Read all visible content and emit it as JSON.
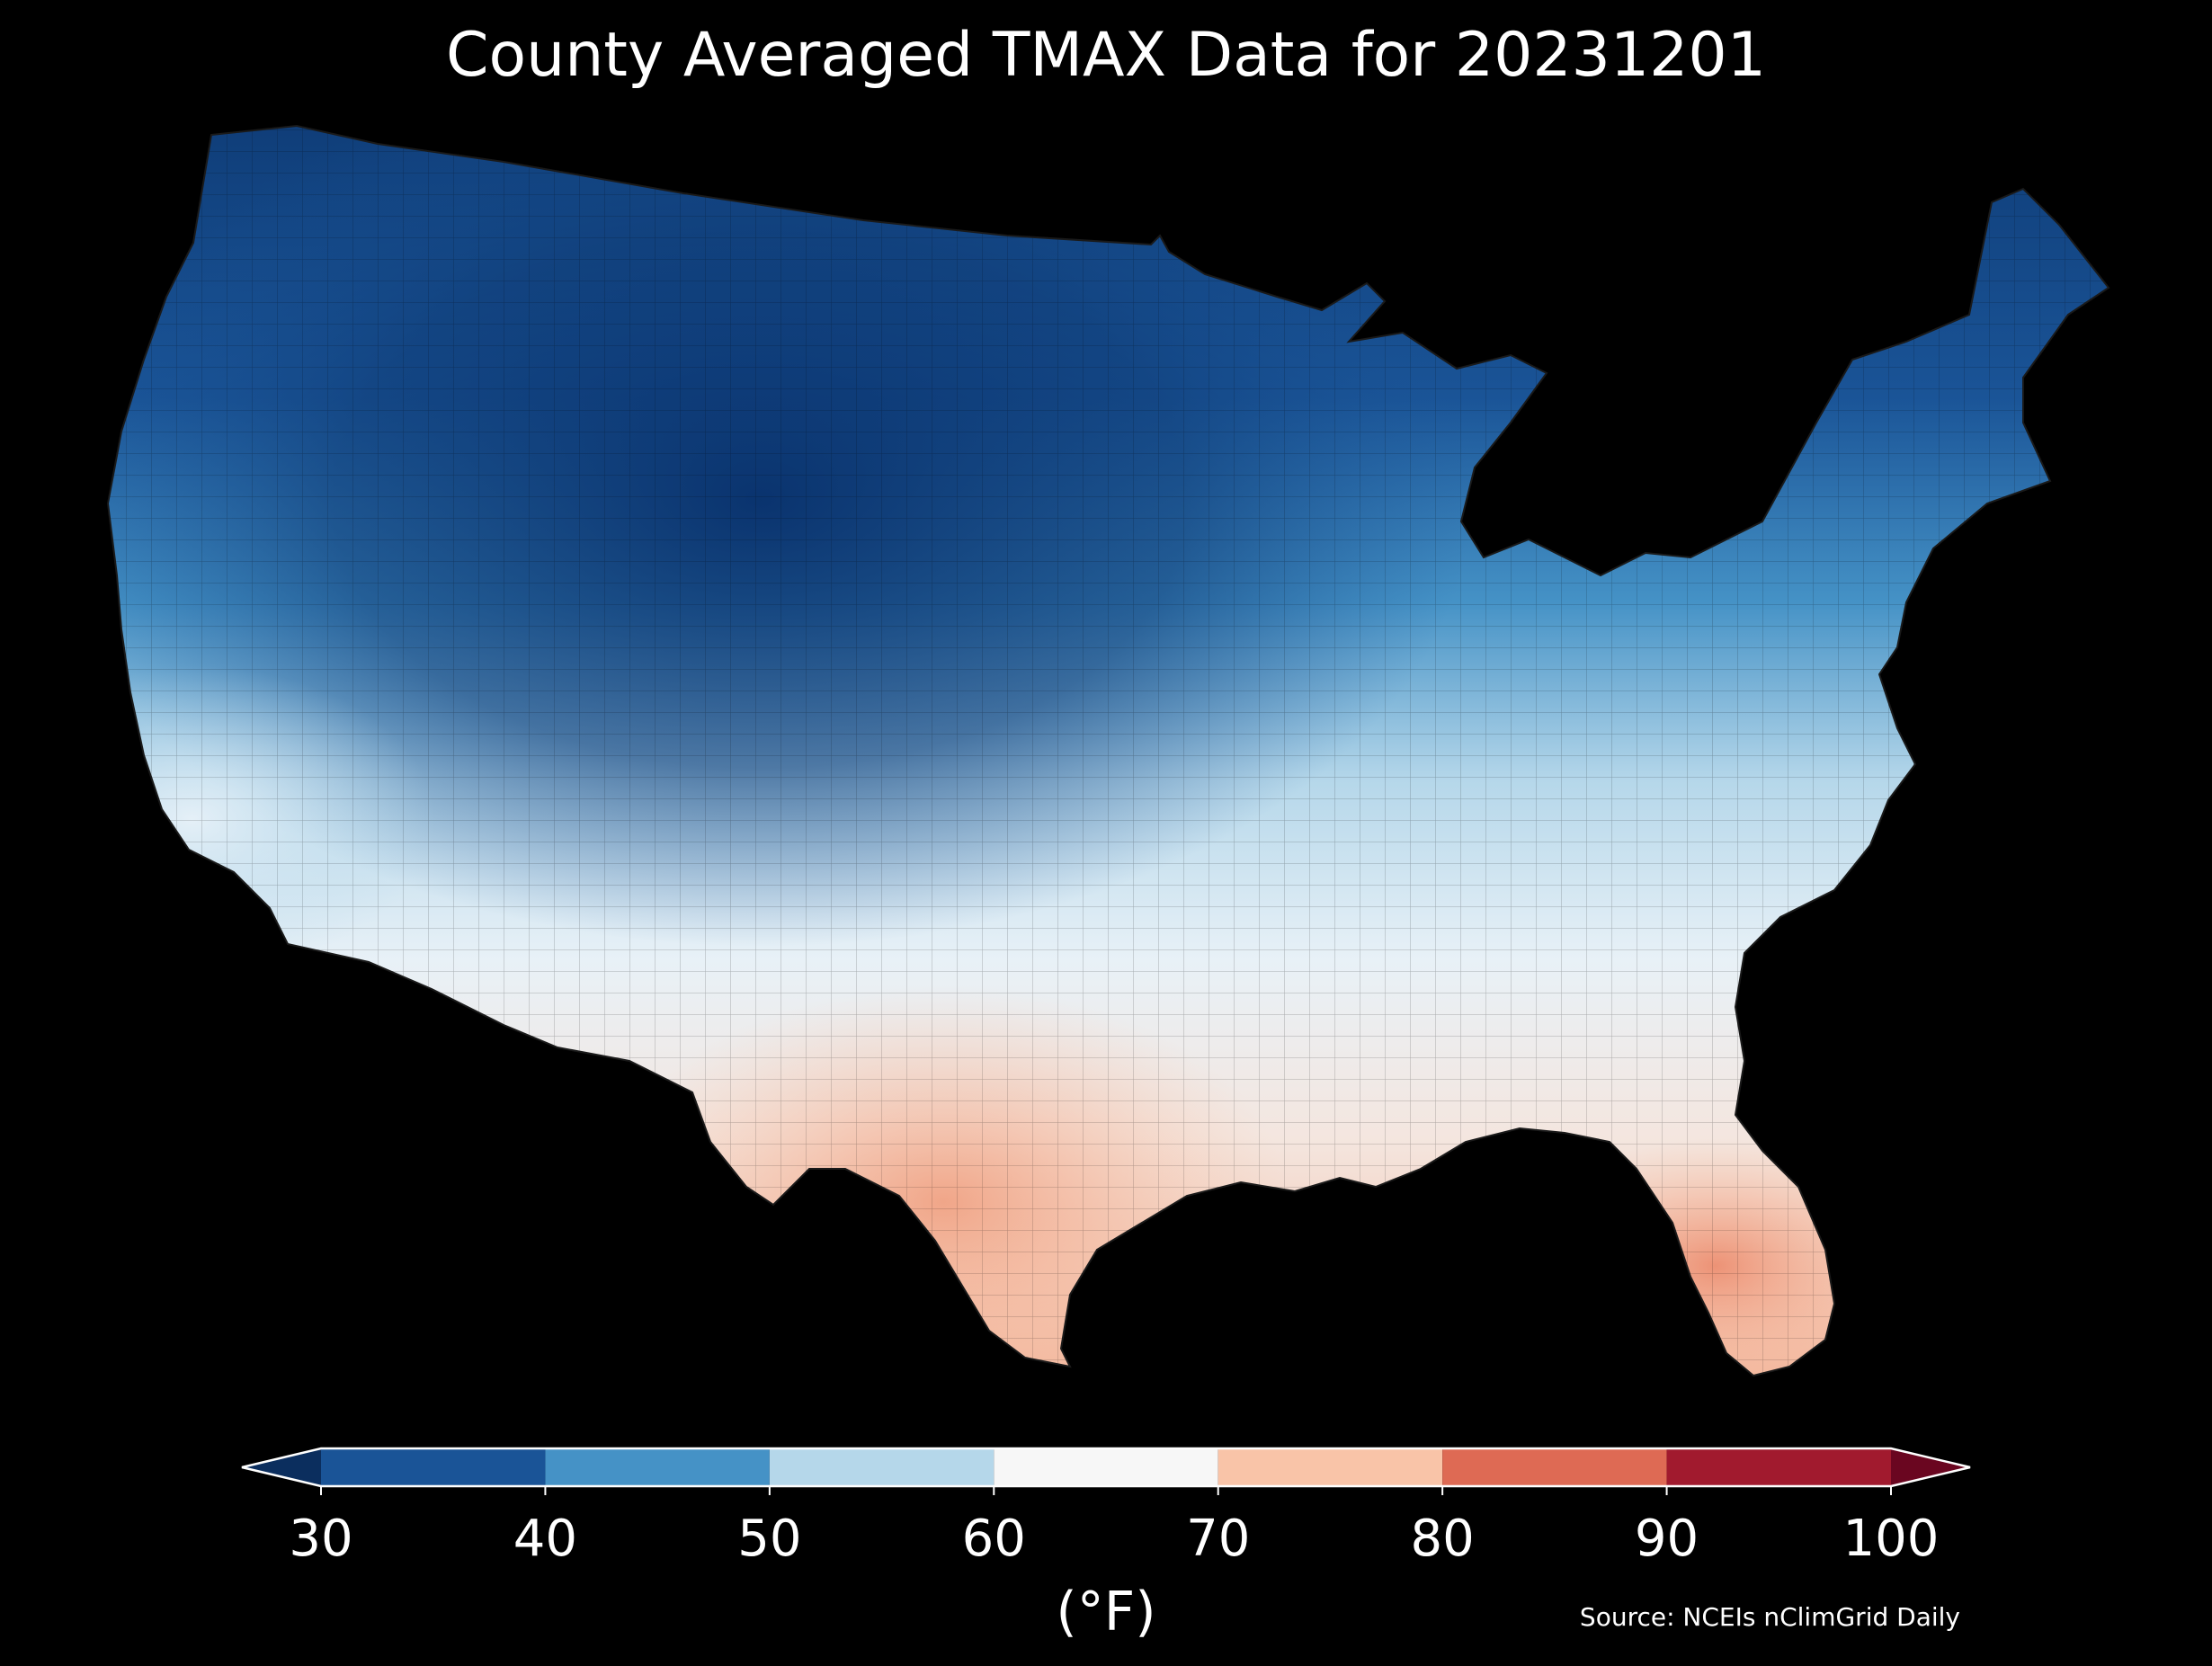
{
  "title": "County Averaged TMAX Data for 20231201",
  "colorbar": {
    "unit_label": "(°F)",
    "ticks": [
      "30",
      "40",
      "50",
      "60",
      "70",
      "80",
      "90",
      "100"
    ],
    "bins": [
      {
        "range": [
          30,
          40
        ],
        "color": "#1a5497"
      },
      {
        "range": [
          40,
          50
        ],
        "color": "#4592c6"
      },
      {
        "range": [
          50,
          60
        ],
        "color": "#b5d7ea"
      },
      {
        "range": [
          60,
          70
        ],
        "color": "#f7f7f7"
      },
      {
        "range": [
          70,
          80
        ],
        "color": "#f9c4a8"
      },
      {
        "range": [
          80,
          90
        ],
        "color": "#de6a54"
      },
      {
        "range": [
          90,
          100
        ],
        "color": "#a11a2e"
      }
    ],
    "under_color": "#0b2e5e",
    "over_color": "#6a0620",
    "extend": "both"
  },
  "source": "Source: NCEIs nClimGrid Daily",
  "map": {
    "region": "Contiguous United States",
    "unit": "county",
    "variable": "TMAX",
    "date": "20231201",
    "background_color": "#000000",
    "border_color": "#1a1a1a"
  }
}
